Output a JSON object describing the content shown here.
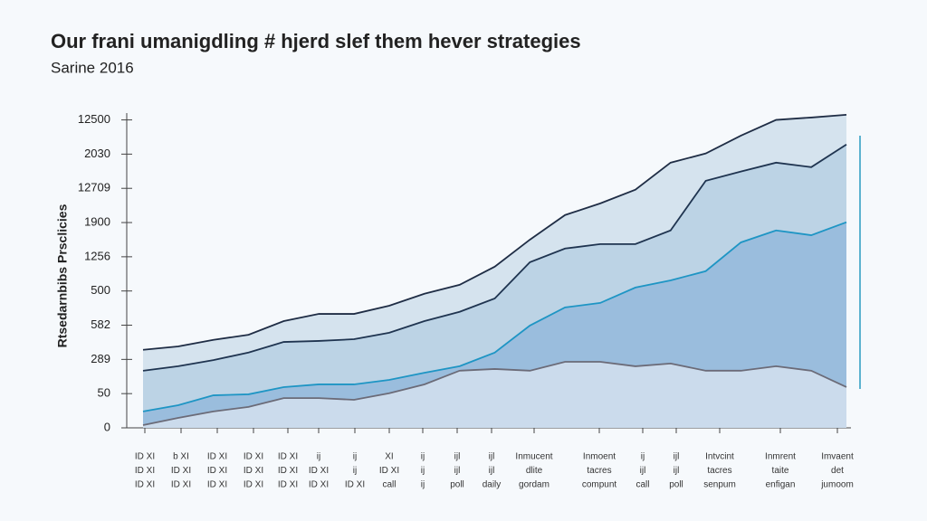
{
  "chart_data": {
    "type": "area",
    "title": "Our frani umanigdling # hjerd slef them hever strategies",
    "subtitle": "Sarine 2016",
    "ylabel": "Rtsedarnbibs Prsclicies",
    "ylim": [
      0,
      9.2
    ],
    "yticks": [
      0,
      {
        "value": 1,
        "label": "50"
      },
      {
        "value": 2,
        "label": "289"
      },
      {
        "value": 3,
        "label": "582"
      },
      {
        "value": 4,
        "label": "500"
      },
      {
        "value": 5,
        "label": "1256"
      },
      {
        "value": 6,
        "label": "1900"
      },
      {
        "value": 7,
        "label": "12709"
      },
      {
        "value": 8,
        "label": "2030"
      },
      {
        "value": 9,
        "label": "12500"
      }
    ],
    "xtick_labels": [
      [
        "ID XI",
        "ID XI",
        "ID XI"
      ],
      [
        "b XI",
        "ID XI",
        "ID XI"
      ],
      [
        "ID XI",
        "ID XI",
        "ID XI"
      ],
      [
        "ID XI",
        "ID XI",
        "ID XI"
      ],
      [
        "ID XI",
        "ID XI",
        "ID XI"
      ],
      [
        "ij",
        "ID XI",
        "ID XI"
      ],
      [
        "ij",
        "ij",
        "ID XI"
      ],
      [
        "XI",
        "ID XI",
        "call"
      ],
      [
        "ij",
        "ij",
        "ij"
      ],
      [
        "ijl",
        "ijl",
        "poll"
      ],
      [
        "ijl",
        "ijl",
        "daily"
      ],
      [
        "Inmucent",
        "dlite",
        "gordam"
      ],
      [
        "Inmoent",
        "tacres",
        "compunt"
      ],
      [
        "ij",
        "ijl",
        "call"
      ],
      [
        "ijl",
        "ijl",
        "poll"
      ],
      [
        "Intvcint",
        "tacres",
        "senpum"
      ],
      [
        "Inmrent",
        "taite",
        "enfigan"
      ],
      [
        "Imvaent",
        "det",
        "jumoom"
      ]
    ],
    "series": [
      {
        "color": "#1f2d45",
        "fill": "#c9dbea",
        "values": [
          2.28,
          2.38,
          2.57,
          2.72,
          3.12,
          3.33,
          3.33,
          3.57,
          3.92,
          4.18,
          4.71,
          5.5,
          6.22,
          6.56,
          6.96,
          7.75,
          8.02,
          8.54,
          9.0,
          9.07,
          9.15
        ]
      },
      {
        "color": "#1f3450",
        "fill": "#b3cde2",
        "values": [
          1.67,
          1.8,
          1.98,
          2.2,
          2.51,
          2.54,
          2.59,
          2.78,
          3.12,
          3.39,
          3.78,
          4.84,
          5.24,
          5.37,
          5.37,
          5.77,
          7.22,
          7.49,
          7.75,
          7.62,
          8.28
        ]
      },
      {
        "color": "#1e95c4",
        "fill": "#8fb6d9",
        "values": [
          0.48,
          0.66,
          0.95,
          0.98,
          1.19,
          1.27,
          1.27,
          1.4,
          1.61,
          1.8,
          2.2,
          2.99,
          3.52,
          3.65,
          4.1,
          4.31,
          4.58,
          5.42,
          5.77,
          5.63,
          6.01
        ]
      },
      {
        "color": "#6b6b78",
        "fill": "#dbe6f0",
        "values": [
          0.08,
          0.29,
          0.48,
          0.61,
          0.87,
          0.87,
          0.82,
          1.01,
          1.27,
          1.67,
          1.72,
          1.67,
          1.93,
          1.93,
          1.8,
          1.88,
          1.67,
          1.67,
          1.8,
          1.67,
          1.19
        ]
      }
    ]
  }
}
